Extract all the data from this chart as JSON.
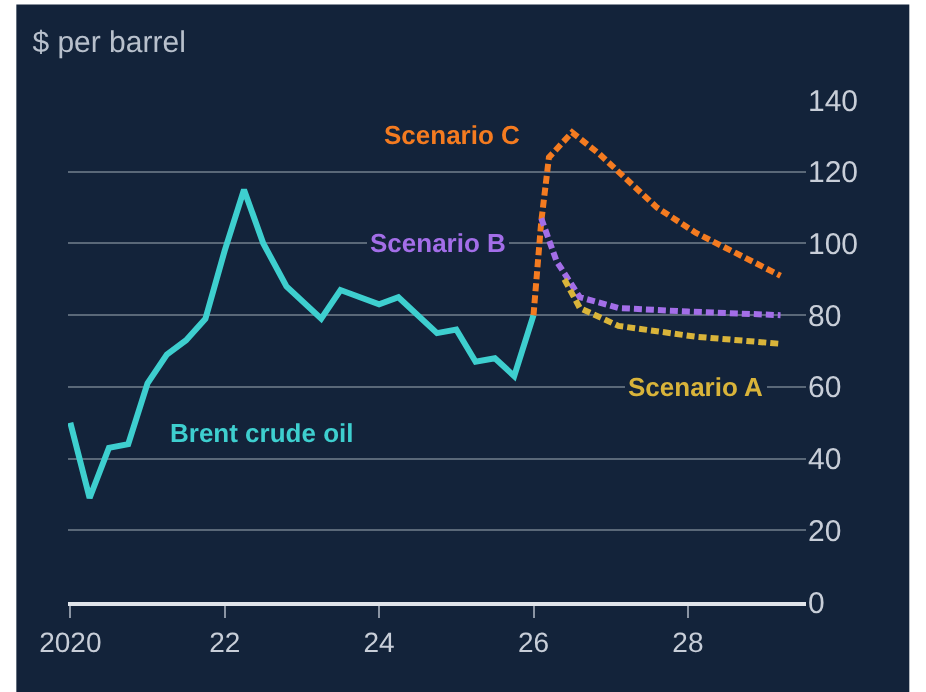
{
  "chart_data": {
    "type": "line",
    "title": "$ per barrel",
    "x": [
      2020.0,
      2020.25,
      2020.5,
      2020.75,
      2021.0,
      2021.25,
      2021.5,
      2021.75,
      2022.0,
      2022.25,
      2022.5,
      2022.8,
      2023.25,
      2023.5,
      2024.0,
      2024.25,
      2024.75,
      2025.0,
      2025.25,
      2025.5,
      2025.75,
      2026.0
    ],
    "series": [
      {
        "name": "Brent crude oil",
        "color": "#3ecfcf",
        "line_style": "solid",
        "values": [
          50,
          29,
          43,
          44,
          61,
          69,
          73,
          79,
          98,
          115,
          100,
          88,
          79,
          87,
          83,
          85,
          75,
          76,
          67,
          68,
          63,
          80
        ]
      },
      {
        "name": "Scenario C",
        "color": "#f47b20",
        "line_style": "dashed",
        "x": [
          2026.0,
          2026.1,
          2026.2,
          2026.5,
          2026.85,
          2027.6,
          2028.1,
          2029.2
        ],
        "values": [
          80,
          106,
          124,
          131,
          125,
          110,
          103,
          91
        ]
      },
      {
        "name": "Scenario B",
        "color": "#a36ee8",
        "line_style": "dashed",
        "x": [
          2026.1,
          2026.3,
          2026.6,
          2027.1,
          2028.0,
          2029.2
        ],
        "values": [
          107,
          95,
          85,
          82,
          81,
          80
        ]
      },
      {
        "name": "Scenario A",
        "color": "#d9b43a",
        "line_style": "dashed",
        "x": [
          2026.4,
          2026.6,
          2027.1,
          2028.1,
          2029.2
        ],
        "values": [
          90,
          82,
          77,
          74,
          72
        ]
      }
    ],
    "xlim": [
      2019.97,
      2029.53
    ],
    "xticks": [
      {
        "value": 2020,
        "label": "2020"
      },
      {
        "value": 2022,
        "label": "22"
      },
      {
        "value": 2024,
        "label": "24"
      },
      {
        "value": 2026,
        "label": "26"
      },
      {
        "value": 2028,
        "label": "28"
      }
    ],
    "ylim": [
      0,
      140
    ],
    "yticks": [
      0,
      20,
      40,
      60,
      80,
      100,
      120,
      140
    ],
    "grid": "y",
    "legend": false,
    "marker": "none"
  }
}
